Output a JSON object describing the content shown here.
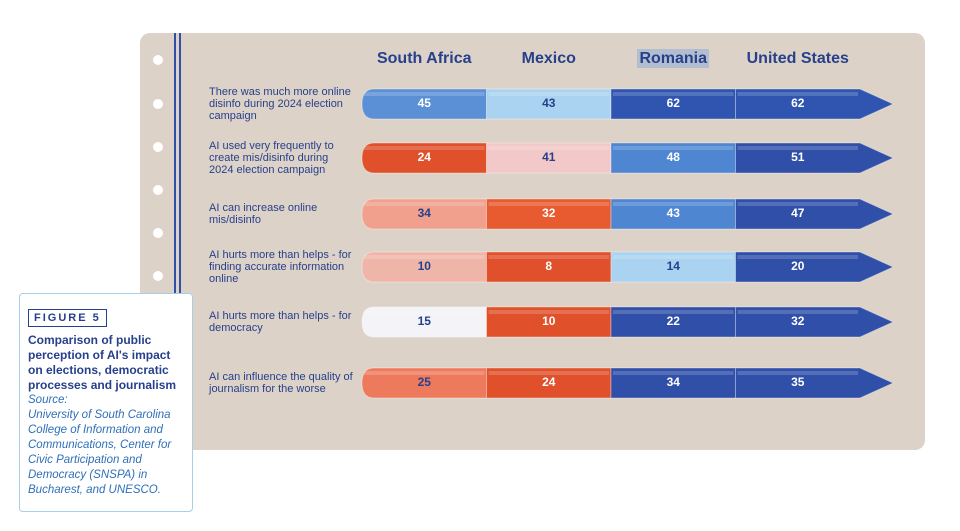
{
  "chart_data": {
    "type": "pencil",
    "figure_label": "FIGURE 5",
    "caption": "Comparison of public perception of AI's impact on elections, democratic processes and journalism",
    "source_label": "Source:",
    "source": "University of South Carolina College of Information and Communications, Center for Civic Participation and Democracy (SNSPA) in Bucharest, and UNESCO.",
    "categories": [
      "There was much more online disinfo during 2024 election campaign",
      "AI used very frequently to create mis/disinfo during 2024 election campaign",
      "AI can increase online mis/disinfo",
      "AI hurts more than helps - for finding accurate information online",
      "AI hurts more than helps - for democracy",
      "AI can influence the quality of journalism for the worse"
    ],
    "series": [
      {
        "name": "South Africa",
        "values": [
          45,
          24,
          34,
          10,
          15,
          25
        ],
        "colors": [
          "#5b8fd6",
          "#e0512b",
          "#f0a08c",
          "#efb5a8",
          "#f3f3f8",
          "#ee7a5e"
        ]
      },
      {
        "name": "Mexico",
        "values": [
          43,
          41,
          32,
          8,
          10,
          24
        ],
        "colors": [
          "#a9d3f0",
          "#f2c8c8",
          "#e85a30",
          "#e0512b",
          "#e0512b",
          "#e0512b"
        ]
      },
      {
        "name": "Romania",
        "values": [
          62,
          48,
          43,
          14,
          22,
          34
        ],
        "colors": [
          "#2f55b0",
          "#4f86d2",
          "#4f86d2",
          "#a9d3f0",
          "#2f4fa8",
          "#2f4fa8"
        ]
      },
      {
        "name": "United States",
        "values": [
          62,
          51,
          47,
          20,
          32,
          35
        ],
        "colors": [
          "#2f55b0",
          "#2f4fa8",
          "#2f4fa8",
          "#2f4fa8",
          "#2f4fa8",
          "#2f4fa8"
        ]
      }
    ],
    "highlight_series": 2
  }
}
